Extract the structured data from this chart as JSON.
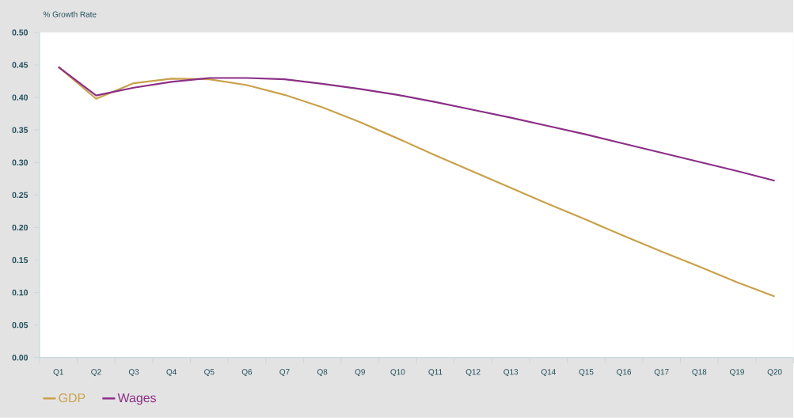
{
  "chart_data": {
    "type": "line",
    "ylabel": "% Growth Rate",
    "categories": [
      "Q1",
      "Q2",
      "Q3",
      "Q4",
      "Q5",
      "Q6",
      "Q7",
      "Q8",
      "Q9",
      "Q10",
      "Q11",
      "Q12",
      "Q13",
      "Q14",
      "Q15",
      "Q16",
      "Q17",
      "Q18",
      "Q19",
      "Q20"
    ],
    "series": [
      {
        "name": "GDP",
        "color": "#c9a04a",
        "values": [
          0.447,
          0.398,
          0.422,
          0.429,
          0.428,
          0.419,
          0.404,
          0.385,
          0.362,
          0.337,
          0.311,
          0.286,
          0.261,
          0.236,
          0.212,
          0.187,
          0.163,
          0.14,
          0.116,
          0.094
        ]
      },
      {
        "name": "Wages",
        "color": "#8b2f86",
        "values": [
          0.447,
          0.403,
          0.415,
          0.424,
          0.43,
          0.43,
          0.428,
          0.421,
          0.413,
          0.404,
          0.393,
          0.381,
          0.369,
          0.356,
          0.343,
          0.329,
          0.315,
          0.301,
          0.287,
          0.272
        ]
      }
    ],
    "ylim": [
      0,
      0.5
    ],
    "yticks": [
      {
        "value": 0,
        "label": "0.00"
      },
      {
        "value": 0.05,
        "label": "0.05"
      },
      {
        "value": 0.1,
        "label": "0.10"
      },
      {
        "value": 0.15,
        "label": "0.15"
      },
      {
        "value": 0.2,
        "label": "0.20"
      },
      {
        "value": 0.25,
        "label": "0.25"
      },
      {
        "value": 0.3,
        "label": "0.30"
      },
      {
        "value": 0.35,
        "label": "0.35"
      },
      {
        "value": 0.4,
        "label": "0.40"
      },
      {
        "value": 0.45,
        "label": "0.45"
      },
      {
        "value": 0.5,
        "label": "0.50"
      }
    ],
    "grid": false,
    "legend": "bottom left",
    "marker": "none",
    "line_style": "solid"
  }
}
